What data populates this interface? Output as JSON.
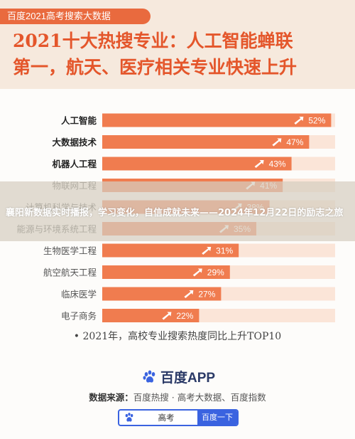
{
  "header": {
    "badge": "百度2021高考搜索大数据",
    "headline_line1": "2021十大热搜专业：人工智能蝉联",
    "headline_line2": "第一，航天、医疗相关专业快速上升"
  },
  "overlay": {
    "text": "襄阳新数据实时播报，学习变化，自信成就未来——2024年12月22日的励志之旅"
  },
  "chart_data": {
    "type": "bar",
    "orientation": "horizontal",
    "categories": [
      "人工智能",
      "大数据技术",
      "机器人工程",
      "物联网工程",
      "计算机科学与技术",
      "能源与环境系统工程",
      "生物医学工程",
      "航空航天工程",
      "临床医学",
      "电子商务"
    ],
    "values": [
      52,
      47,
      43,
      41,
      38,
      35,
      31,
      29,
      27,
      22
    ],
    "value_labels": [
      "52%",
      "47%",
      "43%",
      "41%",
      "38%",
      "35%",
      "31%",
      "29%",
      "27%",
      "22%"
    ],
    "bold_categories": [
      true,
      true,
      true,
      false,
      false,
      false,
      false,
      false,
      false,
      false
    ],
    "caption": "2021年，高校专业搜索热度同比上升TOP10",
    "colors": {
      "bar": "#f07c4f",
      "track": "#fbe5d8",
      "label_bold": "#222222",
      "label_normal": "#555555"
    }
  },
  "footer": {
    "app_name": "百度APP",
    "source_label": "数据来源：",
    "source_text": "百度热搜 · 高考大数据、百度指数",
    "search_query": "高考",
    "search_button": "百度一下",
    "logo_icon": "baidu-paw-icon"
  }
}
